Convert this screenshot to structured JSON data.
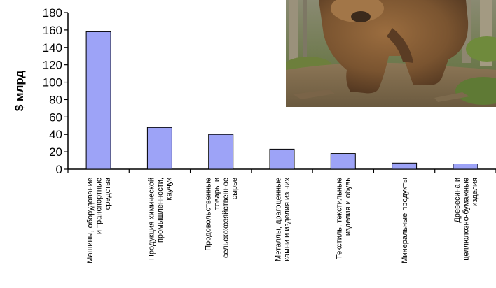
{
  "chart_data": {
    "type": "bar",
    "ylabel": "$ млрд",
    "ylim": [
      0,
      180
    ],
    "yticks": [
      0,
      20,
      40,
      60,
      80,
      100,
      120,
      140,
      160,
      180
    ],
    "grid": false,
    "categories": [
      [
        "Машины, оборудование",
        "и транспортные",
        "средства"
      ],
      [
        "Продукция химической",
        "промышленности,",
        "каучук"
      ],
      [
        "Продовольственные",
        "товары и",
        "сельскохозяйственное",
        "сырье"
      ],
      [
        "Металлы, драгоценные",
        "камни и изделия из них"
      ],
      [
        "Текстиль, текстильные",
        "изделия и обувь"
      ],
      [
        "Минеральные продукты"
      ],
      [
        "Древесина и",
        "целлюлозно-бумажные",
        "изделия"
      ]
    ],
    "values": [
      158,
      48,
      40,
      23,
      18,
      7,
      6
    ],
    "colors": {
      "bar": "#9da3f7",
      "axis": "#000000"
    }
  },
  "photo": {
    "subject": "brown-bear"
  }
}
